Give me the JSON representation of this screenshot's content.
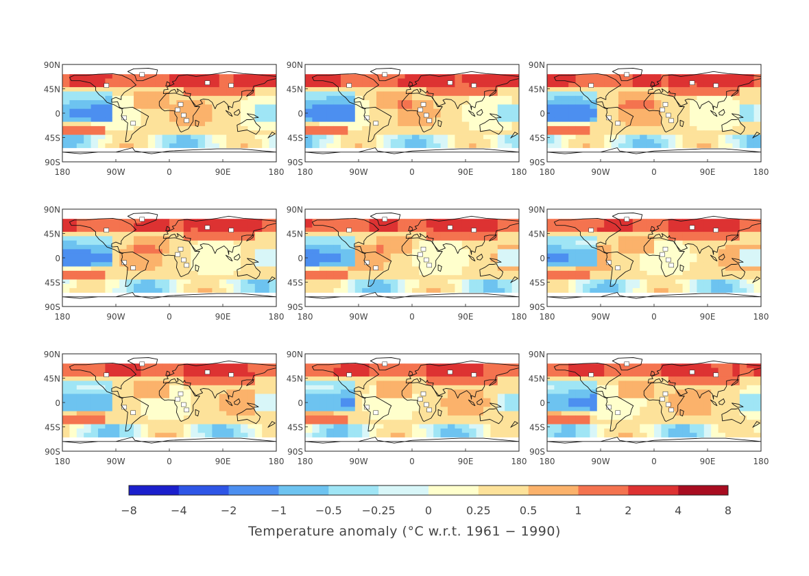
{
  "panels": {
    "count": 9,
    "lat_labels": [
      "90N",
      "45N",
      "0",
      "45S",
      "90S"
    ],
    "lon_labels": [
      "180",
      "90W",
      "0",
      "90E",
      "180"
    ]
  },
  "colorbar": {
    "title": "Temperature anomaly (°C w.r.t. 1961 − 1990)",
    "labels": [
      "−8",
      "−4",
      "−2",
      "−1",
      "−0.5",
      "−0.25",
      "0",
      "0.25",
      "0.5",
      "1",
      "2",
      "4",
      "8"
    ],
    "colors": [
      "#1b1fcc",
      "#2e55e6",
      "#4c8ff0",
      "#6dc3f0",
      "#9fe5f5",
      "#d8f6f8",
      "#ffffcc",
      "#fde29a",
      "#fbb26b",
      "#f4734f",
      "#dd3232",
      "#a80c20"
    ]
  }
}
